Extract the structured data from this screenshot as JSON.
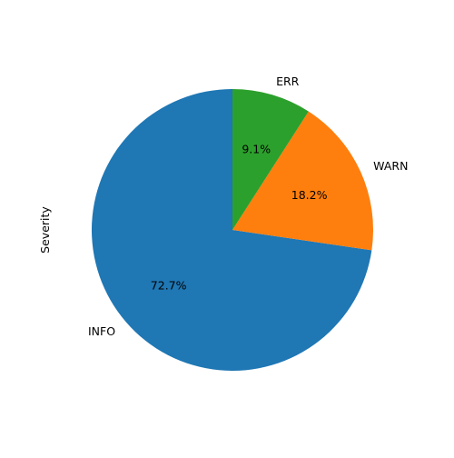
{
  "chart_data": {
    "type": "pie",
    "title": "",
    "ylabel": "Severity",
    "start_angle_deg": 90,
    "direction": "counterclockwise",
    "legend": "none",
    "slices": [
      {
        "label": "INFO",
        "value": 72.7,
        "pct_label": "72.7%",
        "color": "#1f77b4"
      },
      {
        "label": "WARN",
        "value": 18.2,
        "pct_label": "18.2%",
        "color": "#ff7f0e"
      },
      {
        "label": "ERR",
        "value": 9.1,
        "pct_label": "9.1%",
        "color": "#2ca02c"
      }
    ]
  }
}
